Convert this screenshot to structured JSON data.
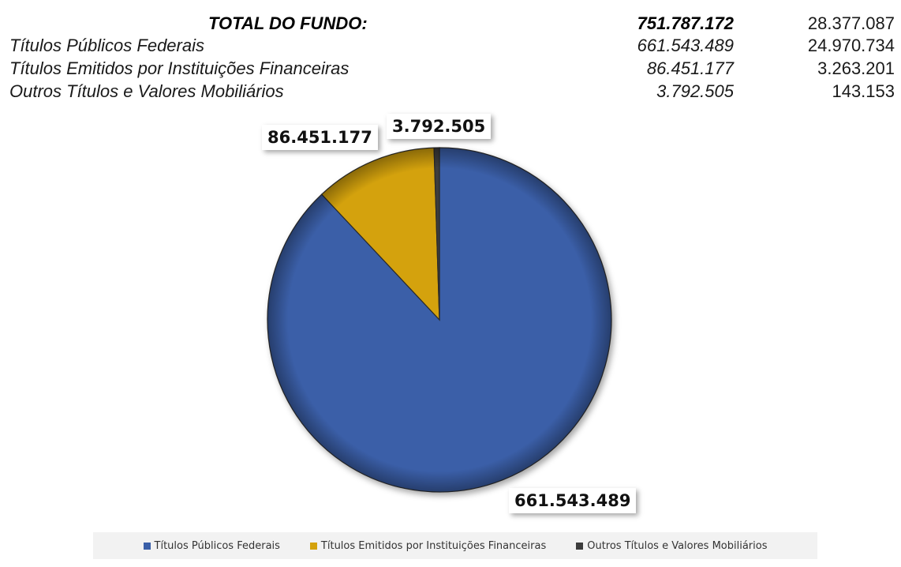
{
  "table": {
    "total": {
      "label": "TOTAL DO FUNDO:",
      "value1": "751.787.172",
      "value2": "28.377.087"
    },
    "rows": [
      {
        "label": "Títulos Públicos Federais",
        "value1": "661.543.489",
        "value2": "24.970.734"
      },
      {
        "label": "Títulos Emitidos por Instituições Financeiras",
        "value1": "86.451.177",
        "value2": "3.263.201"
      },
      {
        "label": "Outros Títulos e Valores Mobiliários",
        "value1": "3.792.505",
        "value2": "143.153"
      }
    ]
  },
  "chart_data": {
    "type": "pie",
    "categories": [
      "Títulos Públicos Federais",
      "Títulos Emitidos por Instituições Financeiras",
      "Outros Títulos e Valores Mobiliários"
    ],
    "values": [
      661543489,
      86451177,
      3792505
    ],
    "data_labels": [
      "661.543.489",
      "86.451.177",
      "3.792.505"
    ],
    "colors": [
      "#3a5fa8",
      "#d4a20c",
      "#3c3c3c"
    ],
    "legend": [
      "Títulos Públicos Federais",
      "Títulos Emitidos por Instituições Financeiras",
      "Outros Títulos e Valores Mobiliários"
    ],
    "legend_position": "bottom"
  }
}
